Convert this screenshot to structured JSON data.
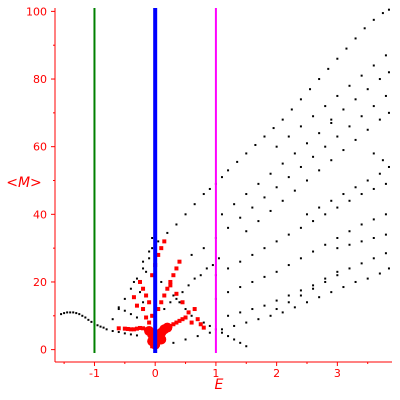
{
  "chart_data": {
    "type": "scatter",
    "title": "",
    "xlabel": "E",
    "ylabel": "<M>",
    "xlim": [
      -1.65,
      3.9
    ],
    "ylim": [
      -1,
      101
    ],
    "x_ticks": [
      -1,
      0,
      1,
      2,
      3
    ],
    "y_ticks": [
      0,
      20,
      40,
      60,
      80,
      100
    ],
    "grid": false,
    "colors": {
      "axis": "#ff0000",
      "black_points": "#000000",
      "red_points": "#ff0000",
      "green_line": "#008000",
      "blue_line": "#0000ff",
      "magenta_line": "#ff00ff"
    },
    "vertical_lines": [
      {
        "x": -1,
        "color": "#008000"
      },
      {
        "x": 0,
        "color": "#0000ff"
      },
      {
        "x": 1,
        "color": "#ff00ff"
      }
    ],
    "series": [
      {
        "color": "#000000",
        "marker": "dot",
        "points": [
          [
            -1.55,
            10.5
          ],
          [
            -1.5,
            10.8
          ],
          [
            -1.45,
            11
          ],
          [
            -1.4,
            11
          ],
          [
            -1.35,
            11
          ],
          [
            -1.3,
            10.8
          ],
          [
            -1.25,
            10.5
          ],
          [
            -1.2,
            10
          ],
          [
            -1.15,
            9.5
          ],
          [
            -1.1,
            8.8
          ],
          [
            -1.05,
            8.2
          ],
          [
            -1.0,
            7.6
          ],
          [
            -0.95,
            7.2
          ],
          [
            -0.9,
            6.8
          ],
          [
            -0.85,
            6.5
          ],
          [
            -0.8,
            6.0
          ],
          [
            -0.7,
            5.5
          ],
          [
            -0.6,
            5.2
          ],
          [
            -0.5,
            4.8
          ],
          [
            -0.4,
            4.5
          ],
          [
            -0.3,
            4.2
          ],
          [
            -0.7,
            9.0
          ],
          [
            -0.6,
            12.0
          ],
          [
            -0.5,
            15.0
          ],
          [
            -0.4,
            18.0
          ],
          [
            -0.3,
            21.0
          ],
          [
            -0.2,
            24.0
          ],
          [
            -0.1,
            27.0
          ],
          [
            -0.05,
            30.0
          ],
          [
            0.05,
            32.0
          ],
          [
            0.2,
            34.5
          ],
          [
            0.35,
            37.0
          ],
          [
            0.5,
            40.0
          ],
          [
            0.65,
            43.0
          ],
          [
            0.8,
            46.0
          ],
          [
            0.9,
            47.5
          ],
          [
            1.0,
            49.0
          ],
          [
            1.1,
            51.0
          ],
          [
            1.2,
            53.0
          ],
          [
            1.35,
            55.5
          ],
          [
            1.5,
            58.0
          ],
          [
            1.65,
            60.5
          ],
          [
            1.8,
            63.0
          ],
          [
            1.95,
            65.5
          ],
          [
            2.1,
            68.0
          ],
          [
            2.25,
            71.0
          ],
          [
            2.4,
            74.0
          ],
          [
            2.55,
            77.0
          ],
          [
            2.7,
            80.0
          ],
          [
            2.85,
            83.0
          ],
          [
            3.0,
            86.0
          ],
          [
            3.15,
            89.0
          ],
          [
            3.3,
            92.0
          ],
          [
            3.45,
            95.0
          ],
          [
            3.6,
            97.5
          ],
          [
            3.75,
            99.5
          ],
          [
            3.85,
            100.5
          ],
          [
            0.1,
            20.0
          ],
          [
            0.2,
            18.0
          ],
          [
            0.3,
            16.0
          ],
          [
            0.4,
            14.0
          ],
          [
            0.5,
            12.0
          ],
          [
            0.6,
            10.0
          ],
          [
            0.7,
            9.0
          ],
          [
            0.8,
            8.0
          ],
          [
            0.9,
            7.0
          ],
          [
            1.0,
            6.0
          ],
          [
            1.1,
            5.0
          ],
          [
            1.2,
            4.0
          ],
          [
            1.3,
            3.0
          ],
          [
            1.4,
            2.0
          ],
          [
            1.5,
            1.0
          ],
          [
            1.0,
            22.0
          ],
          [
            1.2,
            24.0
          ],
          [
            1.4,
            26.0
          ],
          [
            1.6,
            28.0
          ],
          [
            1.8,
            30.0
          ],
          [
            2.0,
            32.0
          ],
          [
            2.2,
            34.0
          ],
          [
            2.4,
            36.0
          ],
          [
            2.6,
            38.0
          ],
          [
            2.8,
            40.0
          ],
          [
            3.0,
            42.0
          ],
          [
            3.2,
            44.0
          ],
          [
            3.4,
            46.0
          ],
          [
            3.6,
            47.5
          ],
          [
            3.8,
            49.0
          ],
          [
            1.0,
            15.0
          ],
          [
            1.2,
            17.0
          ],
          [
            1.4,
            18.5
          ],
          [
            1.6,
            20.0
          ],
          [
            1.8,
            21.5
          ],
          [
            2.0,
            23.0
          ],
          [
            2.2,
            25.0
          ],
          [
            2.4,
            27.0
          ],
          [
            2.6,
            29.0
          ],
          [
            2.8,
            31.0
          ],
          [
            3.0,
            33.0
          ],
          [
            3.2,
            35.0
          ],
          [
            3.4,
            37.0
          ],
          [
            3.6,
            38.5
          ],
          [
            3.8,
            40.0
          ],
          [
            1.5,
            35.0
          ],
          [
            1.7,
            38.0
          ],
          [
            1.9,
            41.0
          ],
          [
            2.1,
            44.0
          ],
          [
            2.3,
            47.0
          ],
          [
            2.5,
            50.0
          ],
          [
            2.7,
            53.0
          ],
          [
            2.9,
            56.0
          ],
          [
            3.1,
            59.0
          ],
          [
            3.3,
            62.0
          ],
          [
            3.5,
            65.0
          ],
          [
            3.7,
            68.0
          ],
          [
            3.85,
            70.0
          ],
          [
            2.0,
            12.0
          ],
          [
            2.2,
            14.0
          ],
          [
            2.4,
            16.0
          ],
          [
            2.6,
            18.0
          ],
          [
            2.8,
            20.0
          ],
          [
            3.0,
            22.0
          ],
          [
            3.2,
            24.0
          ],
          [
            3.4,
            25.5
          ],
          [
            3.6,
            27.0
          ],
          [
            3.8,
            28.5
          ],
          [
            0.6,
            28.0
          ],
          [
            0.8,
            30.0
          ],
          [
            1.0,
            33.0
          ],
          [
            1.2,
            36.0
          ],
          [
            1.4,
            39.0
          ],
          [
            1.6,
            42.0
          ],
          [
            1.8,
            45.0
          ],
          [
            2.0,
            48.0
          ],
          [
            2.2,
            51.0
          ],
          [
            2.4,
            54.0
          ],
          [
            2.6,
            57.0
          ],
          [
            2.8,
            60.0
          ],
          [
            3.0,
            63.0
          ],
          [
            3.2,
            66.0
          ],
          [
            3.4,
            69.0
          ],
          [
            3.6,
            72.0
          ],
          [
            3.8,
            75.0
          ],
          [
            3.85,
            82.0
          ],
          [
            3.7,
            80.0
          ],
          [
            3.5,
            77.0
          ],
          [
            3.3,
            74.0
          ],
          [
            3.1,
            71.0
          ],
          [
            2.9,
            68.0
          ],
          [
            0.3,
            2.0
          ],
          [
            0.5,
            3.0
          ],
          [
            0.7,
            4.0
          ],
          [
            0.9,
            5.0
          ],
          [
            1.1,
            6.0
          ],
          [
            1.3,
            7.0
          ],
          [
            1.5,
            8.0
          ],
          [
            1.7,
            9.0
          ],
          [
            1.9,
            10.0
          ],
          [
            2.1,
            11.0
          ],
          [
            2.3,
            12.5
          ],
          [
            2.5,
            14.0
          ],
          [
            2.7,
            15.5
          ],
          [
            2.9,
            17.0
          ],
          [
            3.1,
            18.5
          ],
          [
            3.3,
            20.0
          ],
          [
            3.5,
            21.0
          ],
          [
            3.7,
            22.5
          ],
          [
            3.85,
            24.0
          ],
          [
            3.0,
            30.0
          ],
          [
            3.2,
            31.0
          ],
          [
            3.4,
            32.0
          ],
          [
            3.6,
            33.0
          ],
          [
            3.8,
            34.0
          ],
          [
            2.5,
            40.0
          ],
          [
            2.7,
            42.0
          ],
          [
            2.9,
            44.0
          ],
          [
            3.1,
            46.0
          ],
          [
            3.3,
            48.0
          ],
          [
            3.5,
            50.0
          ],
          [
            3.7,
            52.0
          ],
          [
            3.85,
            54.0
          ],
          [
            3.75,
            56.0
          ],
          [
            3.6,
            58.0
          ],
          [
            -0.3,
            9.5
          ],
          [
            -0.4,
            10.5
          ],
          [
            -0.5,
            11.5
          ],
          [
            -0.6,
            12.5
          ],
          [
            -0.2,
            14.0
          ],
          [
            -0.25,
            17.0
          ],
          [
            -0.35,
            20.0
          ],
          [
            -0.15,
            23.0
          ],
          [
            -0.2,
            26.0
          ],
          [
            -0.1,
            29.0
          ],
          [
            -0.05,
            33.0
          ],
          [
            0.15,
            12.0
          ],
          [
            0.25,
            14.0
          ],
          [
            0.35,
            15.0
          ],
          [
            0.45,
            17.0
          ],
          [
            0.55,
            19.0
          ],
          [
            0.65,
            21.0
          ],
          [
            0.75,
            22.0
          ],
          [
            0.85,
            24.0
          ],
          [
            0.95,
            25.0
          ],
          [
            1.05,
            27.0
          ],
          [
            1.2,
            10.0
          ],
          [
            1.4,
            11.0
          ],
          [
            1.6,
            12.0
          ],
          [
            1.8,
            13.0
          ],
          [
            2.0,
            14.5
          ],
          [
            2.2,
            16.0
          ],
          [
            2.4,
            17.5
          ],
          [
            2.6,
            19.0
          ],
          [
            2.8,
            21.0
          ],
          [
            3.0,
            23.0
          ],
          [
            1.1,
            40.0
          ],
          [
            1.3,
            43.0
          ],
          [
            1.5,
            46.0
          ],
          [
            1.7,
            49.0
          ],
          [
            1.9,
            52.0
          ],
          [
            2.1,
            55.0
          ],
          [
            2.3,
            58.0
          ],
          [
            2.5,
            61.0
          ],
          [
            2.7,
            64.0
          ],
          [
            2.9,
            67.0
          ],
          [
            2.0,
            60.0
          ],
          [
            2.2,
            63.0
          ],
          [
            2.4,
            66.0
          ],
          [
            2.6,
            69.0
          ],
          [
            2.8,
            72.0
          ],
          [
            3.0,
            75.0
          ],
          [
            3.2,
            78.0
          ],
          [
            3.4,
            81.0
          ],
          [
            3.6,
            84.0
          ],
          [
            3.8,
            87.0
          ]
        ]
      },
      {
        "color": "#ff0000",
        "marker": "square",
        "points": [
          [
            -0.6,
            6.3
          ],
          [
            -0.5,
            6.2
          ],
          [
            -0.45,
            6.1
          ],
          [
            -0.4,
            6.0
          ],
          [
            -0.35,
            6.0
          ],
          [
            -0.3,
            6.2
          ],
          [
            -0.25,
            6.4
          ],
          [
            -0.2,
            6.3
          ],
          [
            -0.15,
            6.0
          ],
          [
            -0.1,
            5.8
          ],
          [
            0.05,
            5.0
          ],
          [
            0.1,
            5.5
          ],
          [
            0.15,
            6.0
          ],
          [
            0.2,
            6.5
          ],
          [
            0.25,
            7.0
          ],
          [
            0.3,
            7.5
          ],
          [
            0.35,
            8.0
          ],
          [
            0.4,
            8.5
          ],
          [
            0.45,
            9.0
          ],
          [
            0.5,
            9.5
          ],
          [
            -0.05,
            10.0
          ],
          [
            0.05,
            12.0
          ],
          [
            0.1,
            14.0
          ],
          [
            0.15,
            16.0
          ],
          [
            0.2,
            18.0
          ],
          [
            0.25,
            20.0
          ],
          [
            0.3,
            22.0
          ],
          [
            0.35,
            24.0
          ],
          [
            0.4,
            26.0
          ],
          [
            -0.1,
            14.0
          ],
          [
            -0.15,
            16.0
          ],
          [
            -0.2,
            18.0
          ],
          [
            -0.25,
            20.0
          ],
          [
            -0.05,
            22.0
          ],
          [
            0.0,
            25.0
          ],
          [
            0.05,
            28.0
          ],
          [
            0.1,
            30.0
          ],
          [
            0.15,
            32.0
          ],
          [
            0.6,
            8.0
          ],
          [
            0.7,
            9.0
          ],
          [
            0.75,
            7.5
          ],
          [
            0.8,
            6.5
          ],
          [
            0.55,
            11.0
          ],
          [
            0.65,
            12.0
          ],
          [
            0.45,
            14.0
          ],
          [
            0.35,
            16.5
          ],
          [
            0.25,
            19.0
          ],
          [
            -0.3,
            13.0
          ],
          [
            -0.35,
            15.5
          ],
          [
            -0.2,
            12.0
          ],
          [
            -0.15,
            9.5
          ],
          [
            -0.1,
            8.0
          ],
          [
            0.05,
            2.0
          ],
          [
            -0.05,
            1.0
          ]
        ]
      },
      {
        "color": "#ff0000",
        "marker": "large-dot",
        "points": [
          [
            -0.1,
            5.5
          ],
          [
            -0.05,
            4.5
          ],
          [
            0.0,
            3.5
          ],
          [
            0.05,
            4.0
          ],
          [
            0.1,
            5.0
          ],
          [
            0.15,
            6.0
          ],
          [
            0.2,
            6.5
          ],
          [
            0.1,
            3.0
          ],
          [
            -0.05,
            2.5
          ],
          [
            0.0,
            1.5
          ]
        ]
      }
    ]
  }
}
